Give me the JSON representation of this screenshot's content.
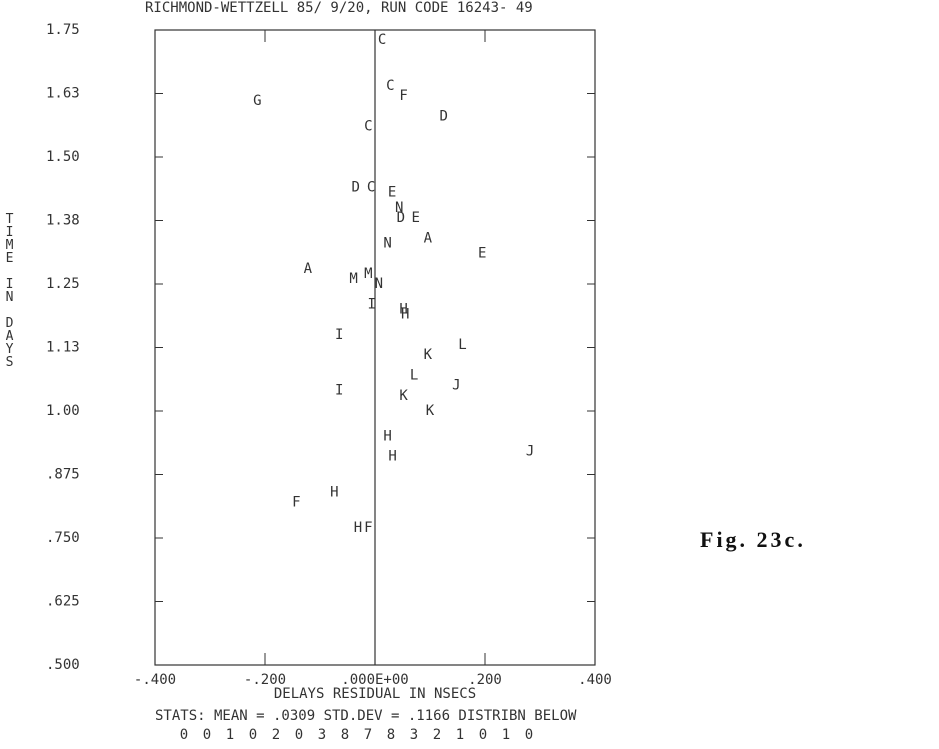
{
  "chart_data": {
    "type": "scatter",
    "title": "RICHMOND-WETTZELL  85/ 9/20, RUN CODE 16243-   49",
    "x_label": "DELAYS RESIDUAL IN NSECS",
    "y_label": "TIME IN DAYS",
    "stats": "STATS: MEAN =      .0309 STD.DEV =     .1166 DISTRIBN BELOW",
    "distribution": [
      0,
      0,
      1,
      0,
      2,
      0,
      3,
      8,
      7,
      8,
      3,
      2,
      1,
      0,
      1,
      0
    ],
    "figure_label": "Fig. 23c.",
    "xlim": [
      -0.4,
      0.4
    ],
    "ylim": [
      0.5,
      1.75
    ],
    "xticks": [
      {
        "value": -0.4,
        "label": "-.400"
      },
      {
        "value": -0.2,
        "label": "-.200"
      },
      {
        "value": 0,
        "label": ".000E+00"
      },
      {
        "value": 0.2,
        "label": ".200"
      },
      {
        "value": 0.4,
        "label": ".400"
      }
    ],
    "yticks": [
      {
        "value": 1.75,
        "label": "1.75"
      },
      {
        "value": 1.625,
        "label": "1.63"
      },
      {
        "value": 1.5,
        "label": "1.50"
      },
      {
        "value": 1.375,
        "label": "1.38"
      },
      {
        "value": 1.25,
        "label": "1.25"
      },
      {
        "value": 1.125,
        "label": "1.13"
      },
      {
        "value": 1.0,
        "label": "1.00"
      },
      {
        "value": 0.875,
        "label": ".875"
      },
      {
        "value": 0.75,
        "label": ".750"
      },
      {
        "value": 0.625,
        "label": ".625"
      },
      {
        "value": 0.5,
        "label": ".500"
      }
    ],
    "zero_line": true,
    "points": {
      "labels": [
        "C",
        "C",
        "F",
        "G",
        "D",
        "C",
        "D",
        "C",
        "E",
        "N",
        "D",
        "E",
        "A",
        "N",
        "E",
        "A",
        "M",
        "M",
        "N",
        "I",
        "H",
        "H",
        "I",
        "K",
        "L",
        "L",
        "J",
        "I",
        "K",
        "K",
        "H",
        "H",
        "J",
        "H",
        "F",
        "H",
        "F"
      ],
      "x": [
        0.013,
        0.028,
        0.052,
        -0.214,
        0.125,
        -0.012,
        -0.035,
        -0.007,
        0.031,
        0.044,
        0.047,
        0.074,
        0.096,
        0.023,
        0.195,
        -0.122,
        -0.012,
        -0.039,
        0.007,
        -0.006,
        0.052,
        0.055,
        -0.065,
        0.096,
        0.159,
        0.071,
        0.148,
        -0.065,
        0.052,
        0.1,
        0.023,
        0.032,
        0.282,
        -0.074,
        -0.143,
        -0.031,
        -0.012
      ],
      "y": [
        1.73,
        1.64,
        1.62,
        1.61,
        1.58,
        1.56,
        1.44,
        1.44,
        1.43,
        1.4,
        1.38,
        1.38,
        1.34,
        1.33,
        1.31,
        1.28,
        1.27,
        1.26,
        1.25,
        1.21,
        1.2,
        1.19,
        1.15,
        1.11,
        1.13,
        1.07,
        1.05,
        1.04,
        1.03,
        1.0,
        0.95,
        0.91,
        0.92,
        0.84,
        0.82,
        0.77,
        0.77
      ]
    }
  }
}
